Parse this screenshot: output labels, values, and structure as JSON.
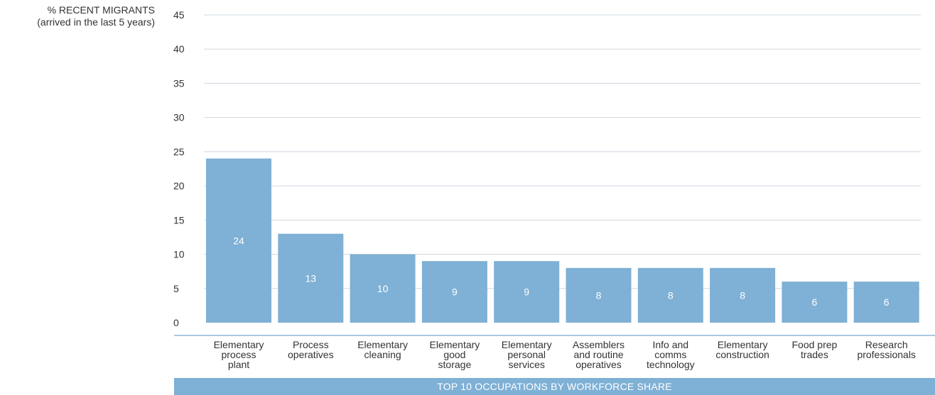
{
  "chart_data": {
    "type": "bar",
    "ylabel": "% RECENT MIGRANTS",
    "ylabel_sub": "(arrived in the last 5 years)",
    "xlabel": "TOP 10 OCCUPATIONS BY WORKFORCE SHARE",
    "ylim": [
      0,
      45
    ],
    "yticks": [
      0,
      5,
      10,
      15,
      20,
      25,
      30,
      35,
      40,
      45
    ],
    "grid": true,
    "categories": [
      [
        "Elementary",
        "process",
        "plant"
      ],
      [
        "Process",
        "operatives"
      ],
      [
        "Elementary",
        "cleaning"
      ],
      [
        "Elementary",
        "good",
        "storage"
      ],
      [
        "Elementary",
        "personal",
        "services"
      ],
      [
        "Assemblers",
        "and routine",
        "operatives"
      ],
      [
        "Info and",
        "comms",
        "technology"
      ],
      [
        "Elementary",
        "construction"
      ],
      [
        "Food prep",
        "trades"
      ],
      [
        "Research",
        "professionals"
      ]
    ],
    "values": [
      24,
      13,
      10,
      9,
      9,
      8,
      8,
      8,
      6,
      6
    ],
    "data_labels": [
      "24",
      "13",
      "10",
      "9",
      "9",
      "8",
      "8",
      "8",
      "6",
      "6"
    ],
    "colors": {
      "bar": "#7fb0d5",
      "grid": "#cfd8e0",
      "axis": "#aac8e0",
      "bar_label": "#ffffff",
      "text": "#333333"
    }
  }
}
